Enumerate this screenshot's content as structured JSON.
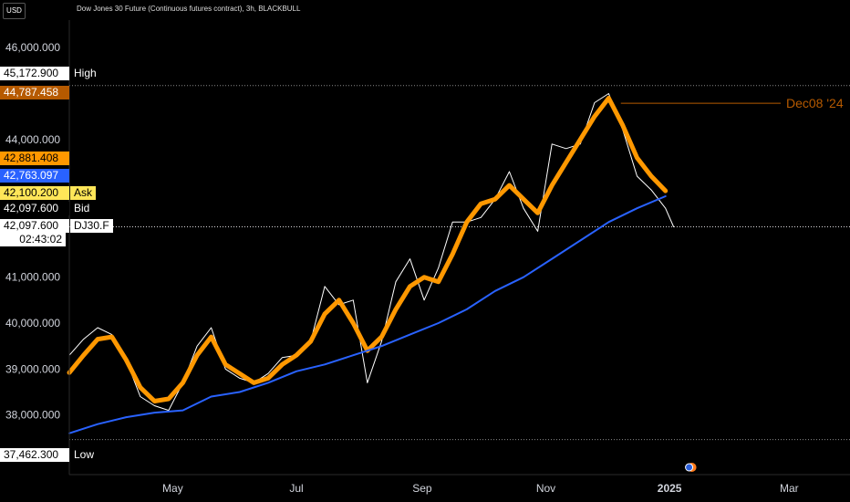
{
  "header": {
    "currency": "USD",
    "title": "Dow Jones 30 Future (Continuous futures contract), 3h, BLACKBULL"
  },
  "price_labels": [
    {
      "id": "high",
      "price": "45,172.900",
      "tag": "High",
      "bg": "#ffffff",
      "fg": "#000000",
      "tagfg": "#ffffff"
    },
    {
      "id": "ma-last",
      "price": "44,787.458",
      "tag": "",
      "bg": "#b65a00",
      "fg": "#ffffff"
    },
    {
      "id": "smooth-last",
      "price": "42,881.408",
      "tag": "",
      "bg": "#ff9800",
      "fg": "#000000"
    },
    {
      "id": "ema-last",
      "price": "42,763.097",
      "tag": "",
      "bg": "#2962ff",
      "fg": "#ffffff"
    },
    {
      "id": "ask",
      "price": "42,100.200",
      "tag": "Ask",
      "bg": "#ffe658",
      "fg": "#000000",
      "tagbg": "#ffe658",
      "tagfg": "#000000"
    },
    {
      "id": "bid",
      "price": "42,097.600",
      "tag": "Bid",
      "bg": "#000000",
      "fg": "#ffffff",
      "tagfg": "#ffffff"
    },
    {
      "id": "last",
      "price": "42,097.600",
      "tag": "DJ30.F",
      "sub": "02:43:02",
      "bg": "#ffffff",
      "fg": "#000000",
      "tagbg": "#ffffff",
      "tagfg": "#000000"
    },
    {
      "id": "low",
      "price": "37,462.300",
      "tag": "Low",
      "bg": "#ffffff",
      "fg": "#000000",
      "tagbg": "#000000",
      "tagfg": "#ffffff"
    }
  ],
  "chart_data": {
    "type": "line",
    "symbol": "DJ30.F",
    "y_ticks": [
      38000,
      39000,
      40000,
      41000,
      44000,
      46000
    ],
    "y_tick_labels": [
      "38,000.000",
      "39,000.000",
      "40,000.000",
      "41,000.000",
      "44,000.000",
      "46,000.000"
    ],
    "ylim": [
      36700,
      46600
    ],
    "x_tick_labels": [
      "May",
      "Jul",
      "Sep",
      "Nov",
      "2025",
      "Mar"
    ],
    "xlim": [
      "2024-03-11",
      "2025-03-31"
    ],
    "x_tick_dates": [
      "2024-05-01",
      "2024-07-01",
      "2024-09-01",
      "2024-11-01",
      "2025-01-01",
      "2025-03-01"
    ],
    "high": 45172.9,
    "low": 37462.3,
    "ask": 42100.2,
    "bid": 42097.6,
    "last": 42097.6,
    "countdown": "02:43:02",
    "annotation": {
      "label": "Dec08 '24",
      "date": "2024-12-08",
      "price": 44787.458,
      "color": "#b65a00"
    },
    "series": [
      {
        "color": "#ffffff",
        "points": [
          [
            "2024-03-11",
            39300
          ],
          [
            "2024-03-18",
            39650
          ],
          [
            "2024-03-25",
            39900
          ],
          [
            "2024-04-01",
            39750
          ],
          [
            "2024-04-08",
            39200
          ],
          [
            "2024-04-15",
            38400
          ],
          [
            "2024-04-22",
            38200
          ],
          [
            "2024-04-29",
            38100
          ],
          [
            "2024-05-06",
            38700
          ],
          [
            "2024-05-13",
            39500
          ],
          [
            "2024-05-20",
            39900
          ],
          [
            "2024-05-27",
            39000
          ],
          [
            "2024-06-03",
            38800
          ],
          [
            "2024-06-10",
            38700
          ],
          [
            "2024-06-17",
            38900
          ],
          [
            "2024-06-24",
            39250
          ],
          [
            "2024-07-01",
            39300
          ],
          [
            "2024-07-08",
            39600
          ],
          [
            "2024-07-15",
            40800
          ],
          [
            "2024-07-22",
            40400
          ],
          [
            "2024-07-29",
            40500
          ],
          [
            "2024-08-05",
            38700
          ],
          [
            "2024-08-12",
            39600
          ],
          [
            "2024-08-19",
            40900
          ],
          [
            "2024-08-26",
            41400
          ],
          [
            "2024-09-02",
            40500
          ],
          [
            "2024-09-09",
            41200
          ],
          [
            "2024-09-16",
            42200
          ],
          [
            "2024-09-23",
            42200
          ],
          [
            "2024-09-30",
            42300
          ],
          [
            "2024-10-07",
            42700
          ],
          [
            "2024-10-14",
            43300
          ],
          [
            "2024-10-21",
            42500
          ],
          [
            "2024-10-28",
            42000
          ],
          [
            "2024-11-04",
            43900
          ],
          [
            "2024-11-11",
            43800
          ],
          [
            "2024-11-18",
            43900
          ],
          [
            "2024-11-25",
            44800
          ],
          [
            "2024-12-02",
            45000
          ],
          [
            "2024-12-09",
            44200
          ],
          [
            "2024-12-16",
            43200
          ],
          [
            "2024-12-23",
            42900
          ],
          [
            "2024-12-30",
            42500
          ],
          [
            "2025-01-03",
            42097.6
          ]
        ]
      },
      {
        "color": "#ff9800",
        "points": [
          [
            "2024-03-11",
            38920
          ],
          [
            "2024-03-18",
            39300
          ],
          [
            "2024-03-25",
            39650
          ],
          [
            "2024-04-01",
            39700
          ],
          [
            "2024-04-08",
            39200
          ],
          [
            "2024-04-15",
            38600
          ],
          [
            "2024-04-22",
            38300
          ],
          [
            "2024-04-29",
            38350
          ],
          [
            "2024-05-06",
            38700
          ],
          [
            "2024-05-13",
            39300
          ],
          [
            "2024-05-20",
            39700
          ],
          [
            "2024-05-27",
            39100
          ],
          [
            "2024-06-03",
            38900
          ],
          [
            "2024-06-10",
            38700
          ],
          [
            "2024-06-17",
            38800
          ],
          [
            "2024-06-24",
            39100
          ],
          [
            "2024-07-01",
            39300
          ],
          [
            "2024-07-08",
            39600
          ],
          [
            "2024-07-15",
            40200
          ],
          [
            "2024-07-22",
            40500
          ],
          [
            "2024-07-29",
            40000
          ],
          [
            "2024-08-05",
            39400
          ],
          [
            "2024-08-12",
            39700
          ],
          [
            "2024-08-19",
            40300
          ],
          [
            "2024-08-26",
            40800
          ],
          [
            "2024-09-02",
            41000
          ],
          [
            "2024-09-09",
            40900
          ],
          [
            "2024-09-16",
            41500
          ],
          [
            "2024-09-23",
            42200
          ],
          [
            "2024-09-30",
            42600
          ],
          [
            "2024-10-07",
            42700
          ],
          [
            "2024-10-14",
            43000
          ],
          [
            "2024-10-21",
            42700
          ],
          [
            "2024-10-28",
            42400
          ],
          [
            "2024-11-04",
            43000
          ],
          [
            "2024-11-11",
            43500
          ],
          [
            "2024-11-18",
            44000
          ],
          [
            "2024-11-25",
            44500
          ],
          [
            "2024-12-02",
            44900
          ],
          [
            "2024-12-09",
            44300
          ],
          [
            "2024-12-16",
            43600
          ],
          [
            "2024-12-23",
            43200
          ],
          [
            "2024-12-30",
            42881
          ]
        ]
      },
      {
        "color": "#2962ff",
        "points": [
          [
            "2024-03-11",
            37600
          ],
          [
            "2024-03-25",
            37800
          ],
          [
            "2024-04-08",
            37950
          ],
          [
            "2024-04-22",
            38050
          ],
          [
            "2024-05-06",
            38100
          ],
          [
            "2024-05-20",
            38400
          ],
          [
            "2024-06-03",
            38500
          ],
          [
            "2024-06-17",
            38700
          ],
          [
            "2024-07-01",
            38950
          ],
          [
            "2024-07-15",
            39100
          ],
          [
            "2024-07-29",
            39300
          ],
          [
            "2024-08-12",
            39500
          ],
          [
            "2024-08-26",
            39750
          ],
          [
            "2024-09-09",
            40000
          ],
          [
            "2024-09-23",
            40300
          ],
          [
            "2024-10-07",
            40700
          ],
          [
            "2024-10-21",
            41000
          ],
          [
            "2024-11-04",
            41400
          ],
          [
            "2024-11-18",
            41800
          ],
          [
            "2024-12-02",
            42200
          ],
          [
            "2024-12-16",
            42500
          ],
          [
            "2024-12-30",
            42763
          ]
        ]
      }
    ]
  }
}
